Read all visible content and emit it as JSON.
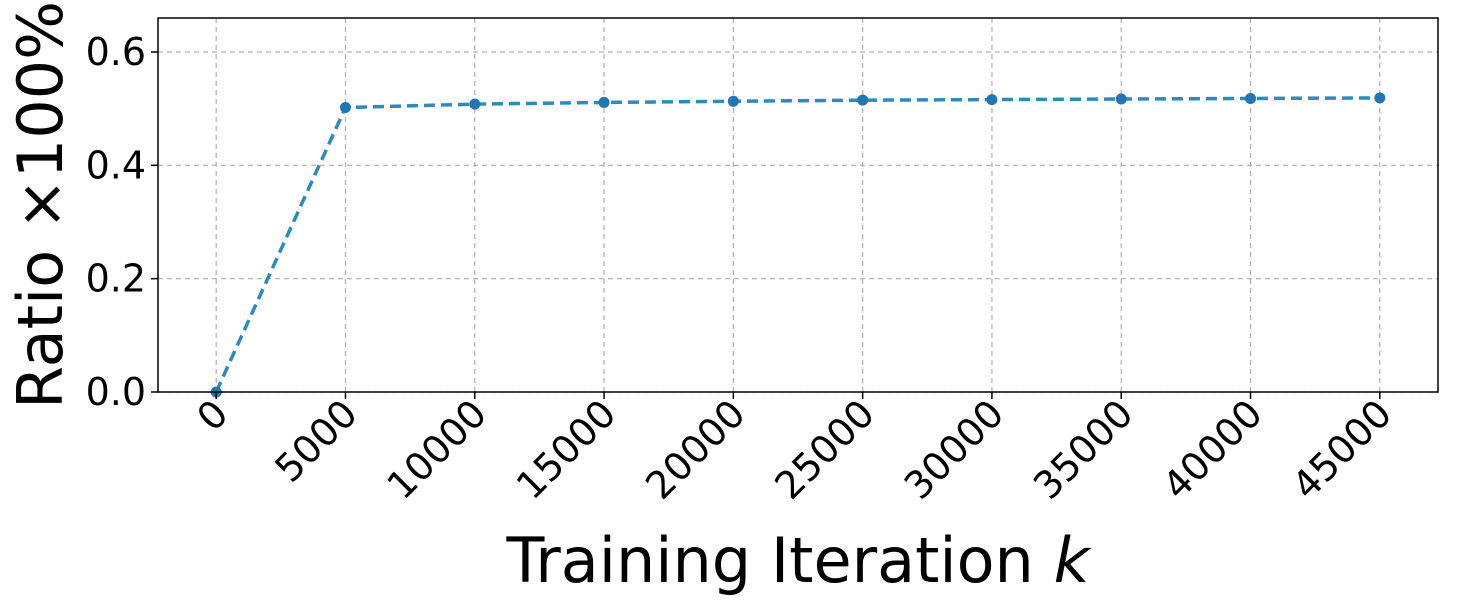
{
  "chart_data": {
    "type": "line",
    "x": [
      0,
      5000,
      10000,
      15000,
      20000,
      25000,
      30000,
      35000,
      40000,
      45000
    ],
    "series": [
      {
        "values": [
          0.0,
          0.502,
          0.508,
          0.511,
          0.513,
          0.515,
          0.516,
          0.517,
          0.518,
          0.519
        ]
      }
    ],
    "xlabel_text": "Training Iteration ",
    "xlabel_var": "k",
    "ylabel": "Ratio ×100%",
    "xticks": [
      "0",
      "5000",
      "10000",
      "15000",
      "20000",
      "25000",
      "30000",
      "35000",
      "40000",
      "45000"
    ],
    "yticks": [
      "0.0",
      "0.2",
      "0.4",
      "0.6"
    ],
    "ytick_values": [
      0.0,
      0.2,
      0.4,
      0.6
    ],
    "xlim": [
      -2250,
      47250
    ],
    "ylim": [
      0.0,
      0.66
    ],
    "grid": true,
    "line_style": "dashed",
    "marker": "circle",
    "color": "#1f77b4"
  }
}
